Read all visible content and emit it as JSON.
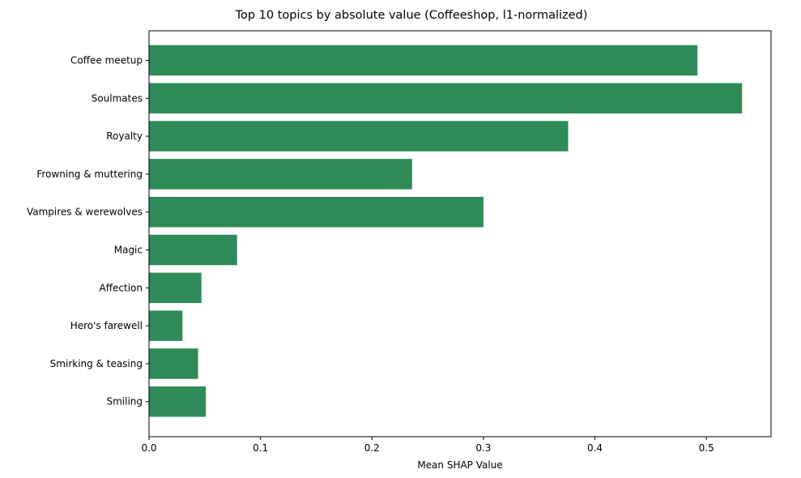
{
  "chart_data": {
    "type": "bar",
    "orientation": "horizontal",
    "title": "Top 10 topics by absolute value (Coffeeshop, l1-normalized)",
    "xlabel": "Mean SHAP Value",
    "ylabel": "",
    "categories": [
      "Coffee meetup",
      "Soulmates",
      "Royalty",
      "Frowning & muttering",
      "Vampires & werewolves",
      "Magic",
      "Affection",
      "Hero's farewell",
      "Smirking & teasing",
      "Smiling"
    ],
    "values": [
      0.492,
      0.532,
      0.376,
      0.236,
      0.3,
      0.079,
      0.047,
      0.03,
      0.044,
      0.051
    ],
    "xlim": [
      0,
      0.558
    ],
    "xticks": [
      0,
      0.1,
      0.2,
      0.3,
      0.4,
      0.5
    ],
    "xtick_labels": [
      "0.0",
      "0.1",
      "0.2",
      "0.3",
      "0.4",
      "0.5"
    ],
    "bar_color": "#2e8b57",
    "grid": false,
    "legend": false
  }
}
